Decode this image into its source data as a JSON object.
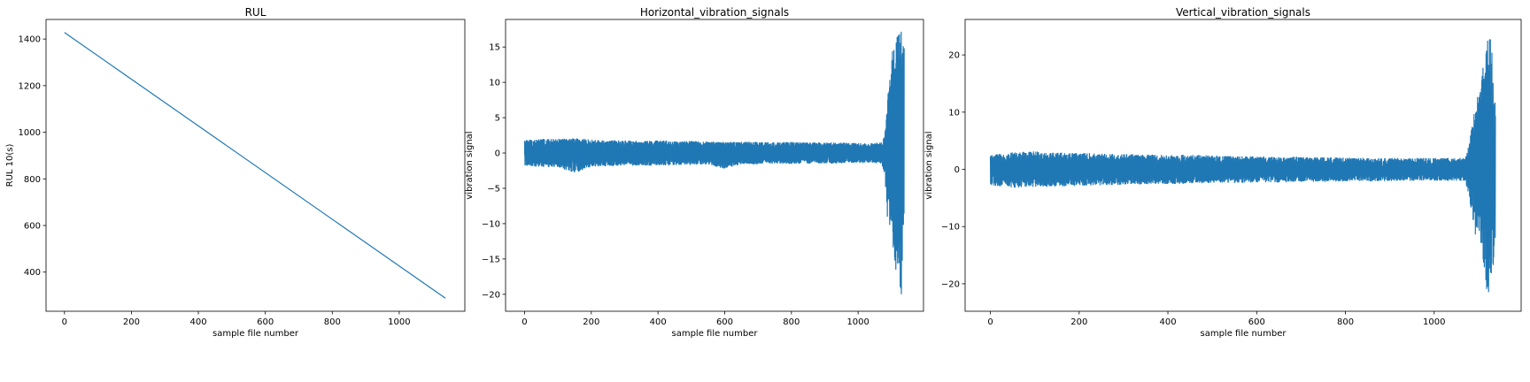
{
  "line_color": "#1f77b4",
  "chart_data": [
    {
      "type": "line",
      "title": "RUL",
      "xlabel": "sample file number",
      "ylabel": "RUL 10(s)",
      "xlim": [
        -55,
        1196
      ],
      "ylim": [
        232,
        1484
      ],
      "xticks": [
        0,
        200,
        400,
        600,
        800,
        1000
      ],
      "yticks": [
        400,
        600,
        800,
        1000,
        1200,
        1400
      ],
      "grid": false,
      "series": [
        {
          "x": [
            0,
            1138
          ],
          "y": [
            1428,
            288
          ]
        }
      ]
    },
    {
      "type": "line",
      "title": "Horizontal_vibration_signals",
      "xlabel": "sample file number",
      "ylabel": "vibration signal",
      "xlim": [
        -57,
        1196
      ],
      "ylim": [
        -22.4,
        18.9
      ],
      "xticks": [
        0,
        200,
        400,
        600,
        800,
        1000
      ],
      "yticks": [
        -20,
        -15,
        -10,
        -5,
        0,
        5,
        10,
        15
      ],
      "grid": false,
      "series": [
        {
          "x": [
            0,
            50,
            100,
            150,
            200,
            250,
            300,
            350,
            400,
            450,
            500,
            550,
            600,
            650,
            700,
            750,
            800,
            850,
            900,
            950,
            1000,
            1040,
            1070,
            1080,
            1090,
            1100,
            1110,
            1120,
            1130,
            1138
          ],
          "upper": [
            1.9,
            2.0,
            2.0,
            2.1,
            1.9,
            1.8,
            1.8,
            1.7,
            1.8,
            1.7,
            1.7,
            1.6,
            1.6,
            1.6,
            1.6,
            1.5,
            1.6,
            1.5,
            1.5,
            1.5,
            1.4,
            1.4,
            1.5,
            2.5,
            9.0,
            14.0,
            15.5,
            17.6,
            17.2,
            15.0
          ],
          "lower": [
            -1.8,
            -2.0,
            -2.0,
            -2.9,
            -1.9,
            -1.9,
            -1.8,
            -1.8,
            -1.8,
            -1.7,
            -1.7,
            -1.6,
            -2.3,
            -1.6,
            -1.6,
            -1.5,
            -1.6,
            -1.5,
            -1.5,
            -1.5,
            -1.4,
            -1.4,
            -1.5,
            -3.0,
            -11.0,
            -10.0,
            -17.5,
            -16.0,
            -20.8,
            -10.0
          ]
        }
      ]
    },
    {
      "type": "line",
      "title": "Vertical_vibration_signals",
      "xlabel": "sample file number",
      "ylabel": "vibration signal",
      "xlim": [
        -57,
        1196
      ],
      "ylim": [
        -24.8,
        26.2
      ],
      "xticks": [
        0,
        200,
        400,
        600,
        800,
        1000
      ],
      "yticks": [
        -20,
        -10,
        0,
        10,
        20
      ],
      "grid": false,
      "series": [
        {
          "x": [
            0,
            50,
            100,
            150,
            200,
            250,
            300,
            350,
            400,
            450,
            500,
            550,
            600,
            650,
            700,
            750,
            800,
            850,
            900,
            950,
            1000,
            1040,
            1070,
            1080,
            1090,
            1100,
            1110,
            1120,
            1130,
            1138
          ],
          "upper": [
            2.5,
            3.0,
            3.2,
            3.0,
            2.9,
            2.8,
            2.7,
            2.6,
            2.5,
            2.6,
            2.4,
            2.3,
            2.3,
            2.2,
            2.2,
            2.1,
            2.1,
            2.0,
            2.0,
            2.0,
            2.0,
            2.0,
            2.0,
            5.0,
            10.0,
            14.0,
            18.0,
            23.0,
            24.0,
            12.0
          ],
          "lower": [
            -2.8,
            -3.2,
            -3.1,
            -3.0,
            -2.9,
            -2.8,
            -2.7,
            -2.6,
            -2.6,
            -2.5,
            -2.4,
            -2.4,
            -2.3,
            -2.3,
            -2.2,
            -2.2,
            -2.1,
            -2.1,
            -2.1,
            -2.0,
            -2.0,
            -2.0,
            -2.0,
            -5.0,
            -12.0,
            -10.0,
            -16.0,
            -22.5,
            -20.0,
            -12.0
          ]
        }
      ]
    }
  ]
}
